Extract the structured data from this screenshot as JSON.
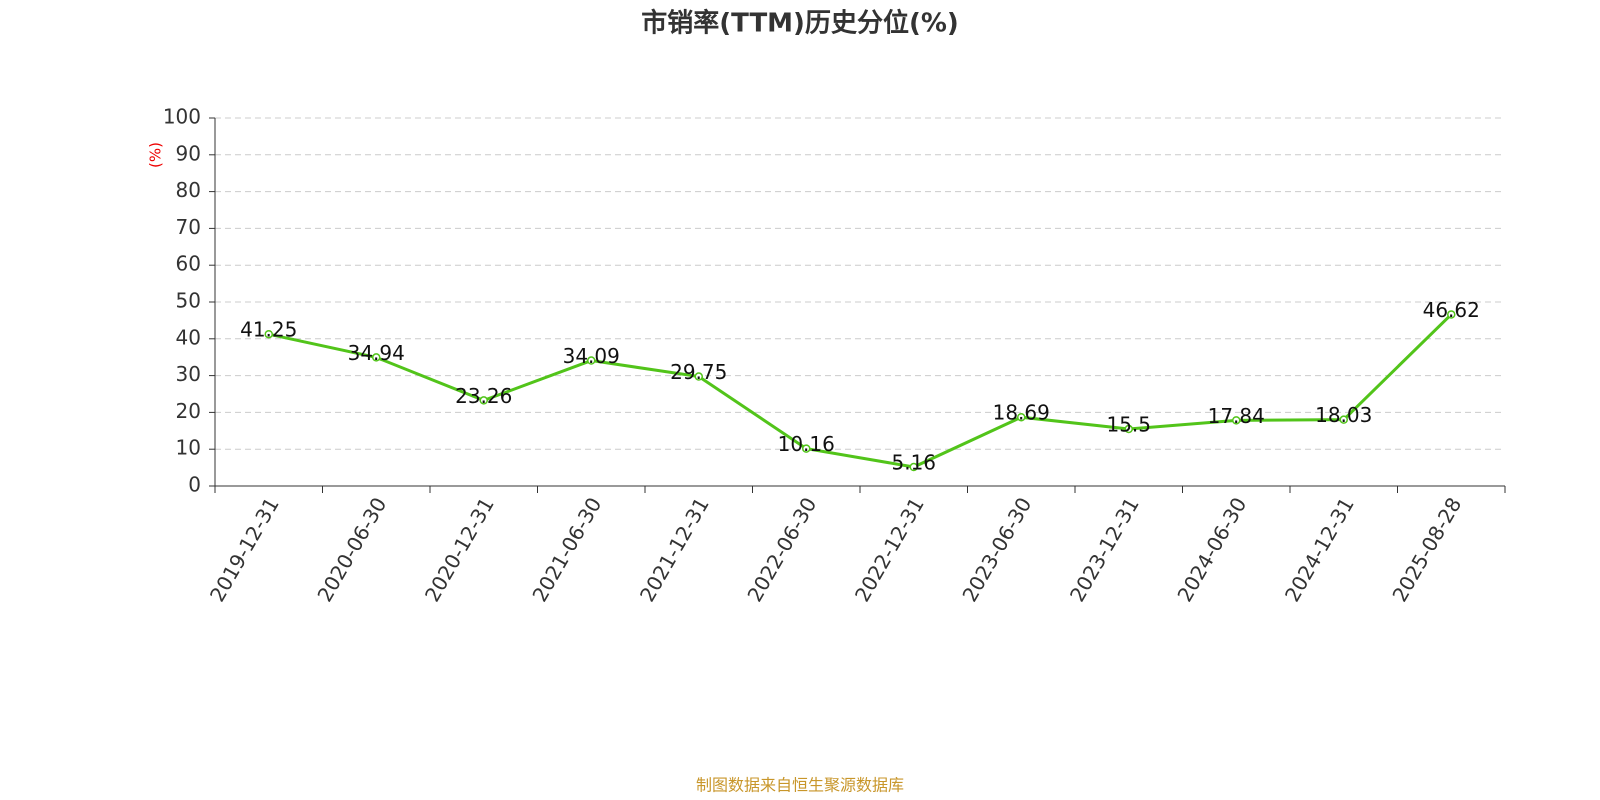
{
  "chart_data": {
    "type": "line",
    "title": "市销率(TTM)历史分位(%)",
    "y_label": "(%)",
    "footer": "制图数据来自恒生聚源数据库",
    "categories": [
      "2019-12-31",
      "2020-06-30",
      "2020-12-31",
      "2021-06-30",
      "2021-12-31",
      "2022-06-30",
      "2022-12-31",
      "2023-06-30",
      "2023-12-31",
      "2024-06-30",
      "2024-12-31",
      "2025-08-28"
    ],
    "series": [
      {
        "color": "#52c41a",
        "values": [
          41.25,
          34.94,
          23.26,
          34.09,
          29.75,
          10.16,
          5.16,
          18.69,
          15.5,
          17.84,
          18.03,
          46.62
        ]
      }
    ],
    "ylim": [
      0,
      100
    ],
    "yticks": [
      0,
      10,
      20,
      30,
      40,
      50,
      60,
      70,
      80,
      90,
      100
    ],
    "grid": true
  }
}
